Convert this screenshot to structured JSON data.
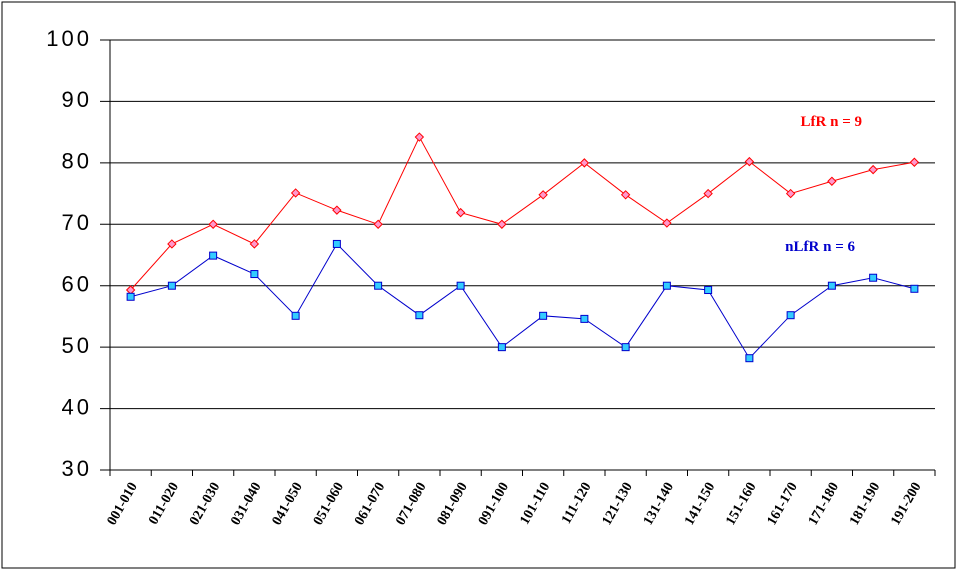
{
  "chart_data": {
    "type": "line",
    "categories": [
      "001-010",
      "011-020",
      "021-030",
      "031-040",
      "041-050",
      "051-060",
      "061-070",
      "071-080",
      "081-090",
      "091-100",
      "101-110",
      "111-120",
      "121-130",
      "131-140",
      "141-150",
      "151-160",
      "161-170",
      "171-180",
      "181-190",
      "191-200"
    ],
    "series": [
      {
        "name": "LfR n = 9",
        "color": "#ff0000",
        "values": [
          59.3,
          66.8,
          70,
          66.8,
          75.1,
          72.3,
          70,
          84.2,
          71.9,
          70,
          74.8,
          80,
          74.8,
          70.2,
          75,
          80.2,
          75,
          77,
          78.9,
          80.1
        ]
      },
      {
        "name": "nLfR n = 6",
        "color": "#0000cc",
        "values": [
          58.2,
          60,
          64.9,
          61.9,
          55.1,
          66.8,
          60,
          55.2,
          60,
          50,
          55.1,
          54.6,
          50,
          60,
          59.3,
          48.2,
          55.2,
          60,
          61.3,
          59.5
        ]
      }
    ],
    "ylim": [
      30,
      100
    ],
    "yticks": [
      30,
      40,
      50,
      60,
      70,
      80,
      90,
      100
    ],
    "grid": true
  }
}
